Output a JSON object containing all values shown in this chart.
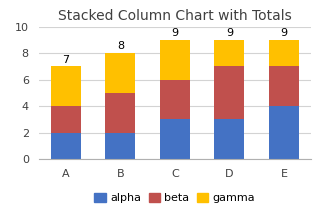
{
  "categories": [
    "A",
    "B",
    "C",
    "D",
    "E"
  ],
  "alpha": [
    2,
    2,
    3,
    3,
    4
  ],
  "beta": [
    2,
    3,
    3,
    4,
    3
  ],
  "gamma": [
    3,
    3,
    3,
    2,
    2
  ],
  "totals": [
    7,
    8,
    9,
    9,
    9
  ],
  "alpha_color": "#4472C4",
  "beta_color": "#C0504D",
  "gamma_color": "#FFC000",
  "title": "Stacked Column Chart with Totals",
  "ylim": [
    0,
    10
  ],
  "yticks": [
    0,
    2,
    4,
    6,
    8,
    10
  ],
  "bar_width": 0.55,
  "title_fontsize": 10,
  "tick_fontsize": 8,
  "legend_fontsize": 8,
  "total_fontsize": 8,
  "bg_color": "#ffffff",
  "grid_color": "#d3d3d3"
}
